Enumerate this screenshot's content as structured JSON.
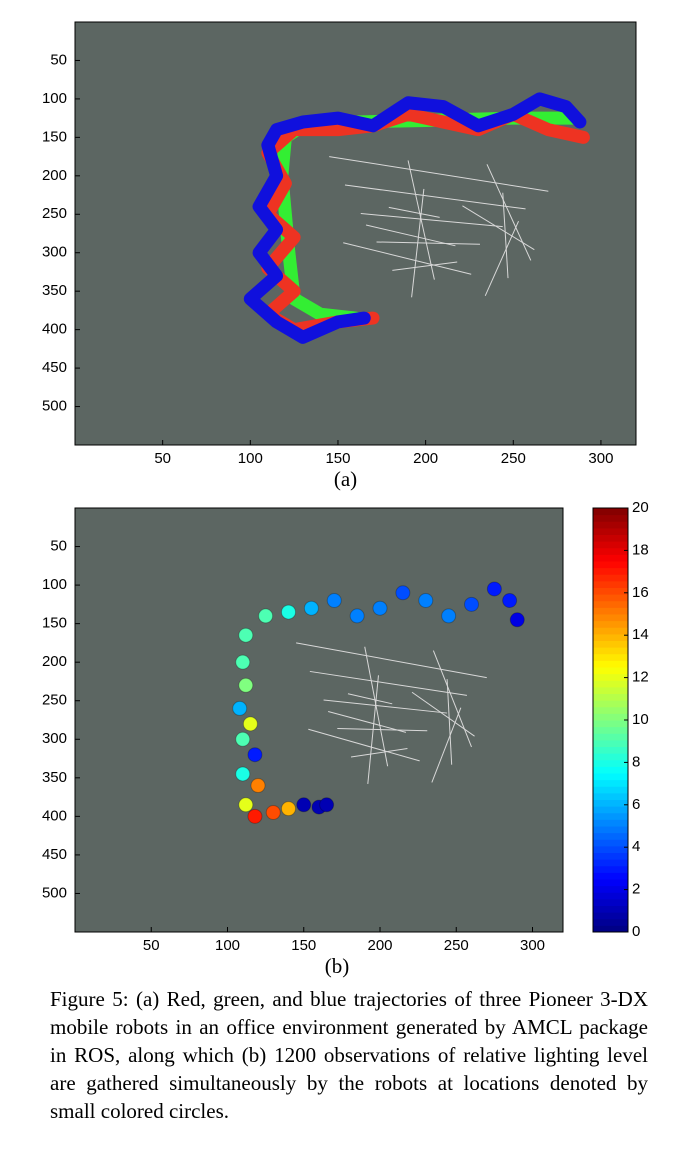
{
  "charts": [
    {
      "type": "line",
      "caption": "(a)",
      "xlim": [
        0,
        320
      ],
      "ylim": [
        550,
        0
      ],
      "xticks": [
        50,
        100,
        150,
        200,
        250,
        300
      ],
      "yticks": [
        50,
        100,
        150,
        200,
        250,
        300,
        350,
        400,
        450,
        500
      ],
      "series": [
        {
          "color": "#33ee33",
          "x": [
            285,
            250,
            200,
            160,
            130,
            120,
            118,
            120,
            122,
            125,
            140,
            160
          ],
          "y": [
            125,
            125,
            128,
            130,
            135,
            150,
            200,
            250,
            300,
            360,
            380,
            385
          ]
        },
        {
          "color": "#ee3322",
          "x": [
            290,
            270,
            250,
            230,
            210,
            190,
            170,
            150,
            125,
            110,
            120,
            110,
            125,
            110,
            125,
            110,
            125,
            150,
            170
          ],
          "y": [
            150,
            140,
            120,
            140,
            130,
            120,
            135,
            140,
            140,
            170,
            210,
            250,
            280,
            320,
            350,
            380,
            400,
            390,
            385
          ]
        },
        {
          "color": "#1010dd",
          "x": [
            288,
            280,
            265,
            250,
            230,
            210,
            190,
            170,
            150,
            130,
            115,
            110,
            115,
            105,
            115,
            105,
            115,
            100,
            115,
            130,
            150,
            165
          ],
          "y": [
            130,
            110,
            100,
            120,
            135,
            110,
            105,
            135,
            125,
            130,
            140,
            160,
            200,
            240,
            270,
            300,
            330,
            360,
            390,
            410,
            390,
            385
          ]
        }
      ]
    },
    {
      "type": "scatter",
      "caption": "(b)",
      "xlim": [
        0,
        320
      ],
      "ylim": [
        550,
        0
      ],
      "xticks": [
        50,
        100,
        150,
        200,
        250,
        300
      ],
      "yticks": [
        50,
        100,
        150,
        200,
        250,
        300,
        350,
        400,
        450,
        500
      ],
      "clim": [
        0,
        20
      ],
      "cticks": [
        0,
        2,
        4,
        6,
        8,
        10,
        12,
        14,
        16,
        18,
        20
      ],
      "x": [
        290,
        285,
        275,
        260,
        245,
        230,
        215,
        200,
        185,
        170,
        155,
        140,
        125,
        112,
        110,
        112,
        108,
        115,
        110,
        118,
        110,
        120,
        112,
        118,
        130,
        140,
        150,
        160,
        165
      ],
      "y": [
        145,
        120,
        105,
        125,
        140,
        120,
        110,
        130,
        140,
        120,
        130,
        135,
        140,
        165,
        200,
        230,
        260,
        280,
        300,
        320,
        345,
        360,
        385,
        400,
        395,
        390,
        385,
        388,
        385
      ],
      "values": [
        2,
        3,
        3,
        4,
        5,
        5,
        4,
        5,
        5,
        5,
        6,
        8,
        9,
        9,
        9,
        10,
        6,
        12,
        9,
        3,
        8,
        15,
        12,
        17,
        16,
        14,
        1,
        1,
        1
      ]
    }
  ],
  "caption": "Figure 5: (a) Red, green, and blue trajectories of three Pioneer 3-DX mobile robots in an office environment generated by AMCL package in ROS, along which (b) 1200 observations of relative lighting level are gathered simultaneously by the robots at locations denoted by small colored circles."
}
